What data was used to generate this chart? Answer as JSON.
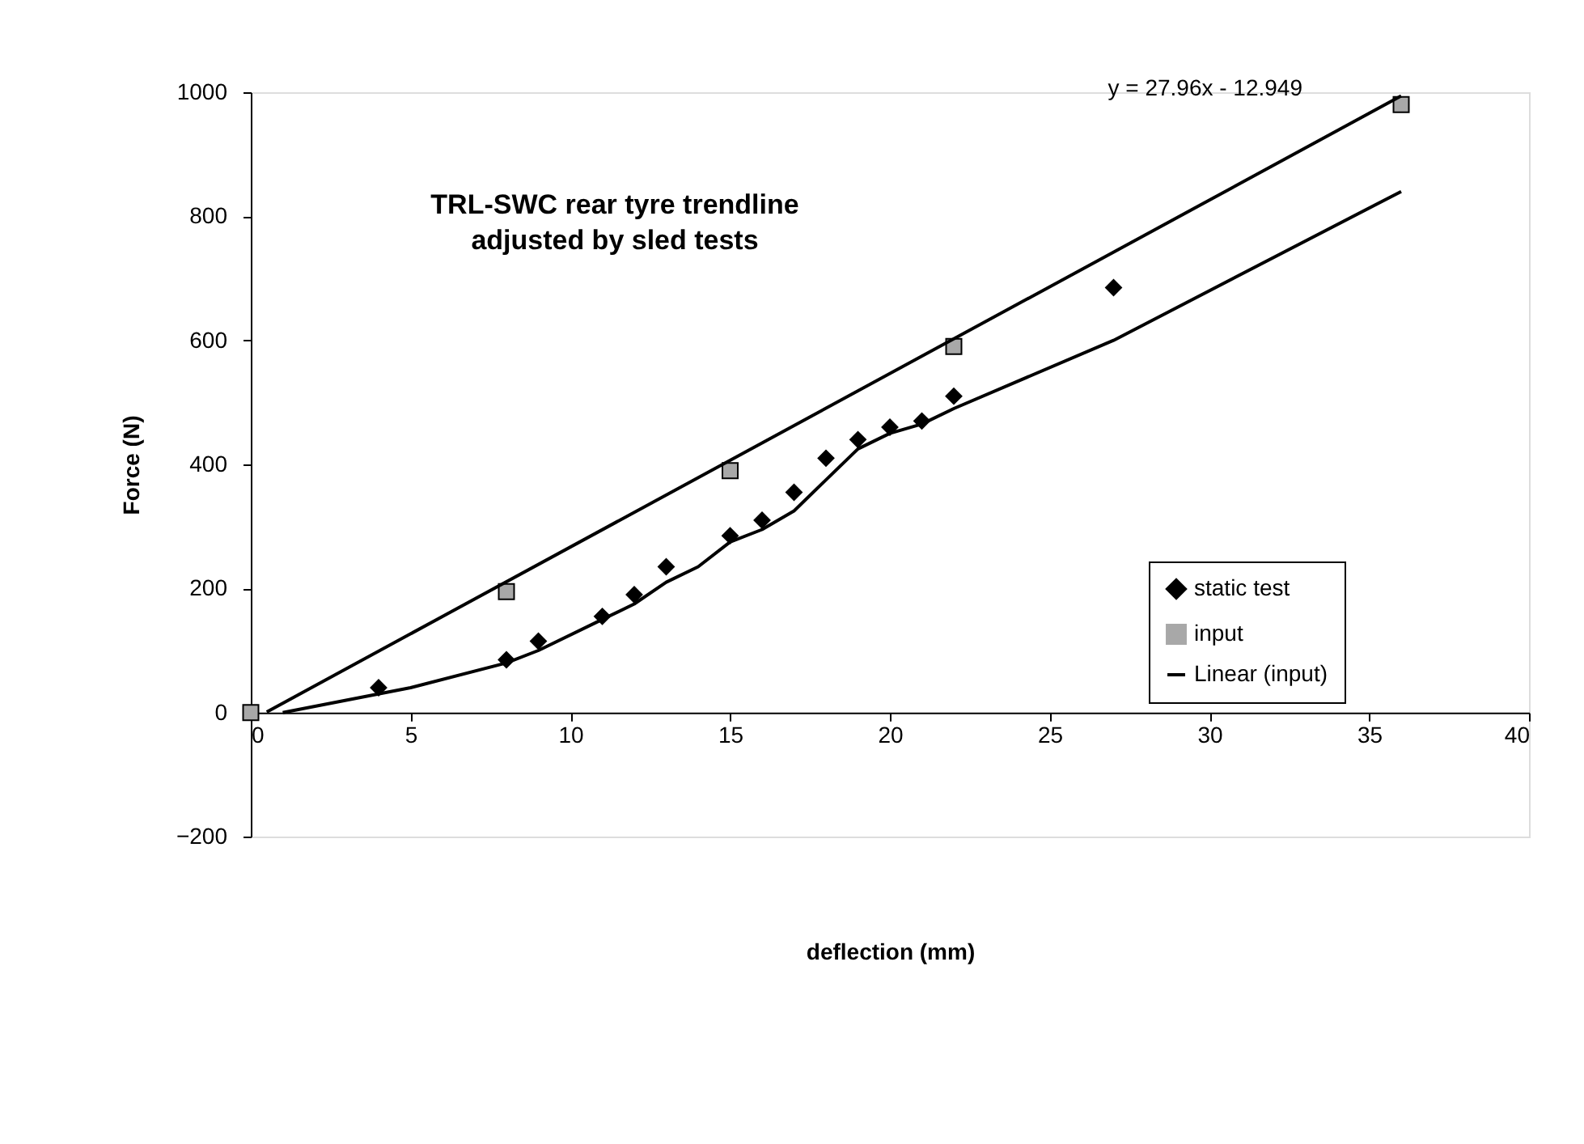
{
  "chart_data": {
    "type": "scatter",
    "title": "TRL-SWC rear tyre trendline\nadjusted by sled tests",
    "xlabel": "deflection (mm)",
    "ylabel": "Force (N)",
    "annotations": [
      "y = 27.96x - 12.949"
    ],
    "xlim": [
      0,
      40
    ],
    "xticks": [
      0,
      5,
      10,
      15,
      20,
      25,
      30,
      35,
      40
    ],
    "ylim": [
      -200,
      1000
    ],
    "yticks": [
      -200,
      0,
      200,
      400,
      600,
      800,
      1000
    ],
    "grid": false,
    "legend": "bottom right",
    "series": [
      {
        "name": "static test",
        "marker": "diamond",
        "color": "#000000",
        "x": [
          4,
          8,
          9,
          11,
          12,
          13,
          15,
          16,
          17,
          18,
          19,
          20,
          21,
          22,
          27
        ],
        "values": [
          40,
          85,
          115,
          155,
          190,
          235,
          285,
          310,
          355,
          410,
          440,
          460,
          470,
          510,
          685
        ]
      },
      {
        "name": "input",
        "marker": "square",
        "color": "#a8a8a8",
        "x": [
          0,
          8,
          15,
          22,
          36
        ],
        "values": [
          0,
          195,
          390,
          590,
          980
        ]
      },
      {
        "name": "Linear (input)",
        "type": "line",
        "color": "#000000",
        "x": [
          0.5,
          36
        ],
        "values": [
          1,
          994
        ]
      },
      {
        "type": "line",
        "color": "#000000",
        "x": [
          1,
          5,
          8,
          9,
          11,
          12,
          13,
          14,
          15,
          16,
          17,
          18,
          19,
          20,
          21,
          22,
          27,
          36
        ],
        "values": [
          0,
          40,
          80,
          100,
          150,
          175,
          210,
          235,
          275,
          295,
          325,
          375,
          425,
          450,
          465,
          490,
          600,
          840
        ]
      }
    ]
  }
}
